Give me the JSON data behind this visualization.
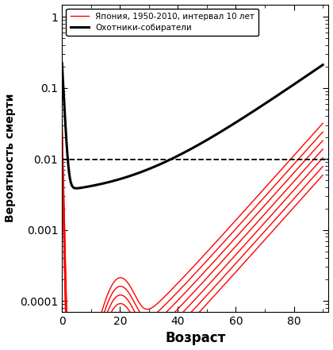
{
  "title": "",
  "xlabel": "Возраст",
  "ylabel": "Вероятность смерти",
  "legend_hg": "Охотники-собиратели",
  "legend_jp": "Япония, 1950-2010, интервал 10 лет",
  "ylim_low": 7e-05,
  "ylim_high": 1.5,
  "xlim_low": 0,
  "xlim_high": 92,
  "yticks": [
    0.0001,
    0.001,
    0.01,
    0.1,
    1
  ],
  "xticks": [
    0,
    20,
    40,
    60,
    80
  ],
  "background_color": "#ffffff",
  "hg_color": "#000000",
  "jp_color": "#ff0000",
  "dashed_level": 0.0098,
  "hg_lw": 2.2,
  "jp_lw": 1.0
}
